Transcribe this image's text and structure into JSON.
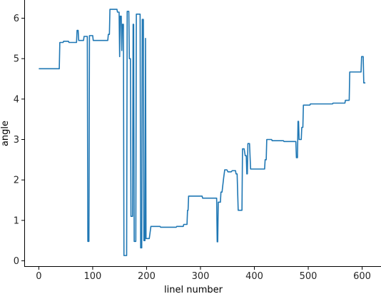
{
  "chart_data": {
    "type": "line",
    "title": "",
    "xlabel": "linel number",
    "ylabel": "angle",
    "xlim": [
      -27,
      635
    ],
    "ylim": [
      -0.15,
      6.45
    ],
    "xticks": [
      0,
      100,
      200,
      300,
      400,
      500,
      600
    ],
    "yticks": [
      0,
      1,
      2,
      3,
      4,
      5,
      6
    ],
    "grid": false,
    "line_color": "#1f77b4",
    "series": [
      {
        "points": [
          [
            0,
            4.75
          ],
          [
            38,
            4.75
          ],
          [
            39,
            5.4
          ],
          [
            45,
            5.4
          ],
          [
            46,
            5.43
          ],
          [
            55,
            5.43
          ],
          [
            56,
            5.4
          ],
          [
            70,
            5.4
          ],
          [
            71,
            5.7
          ],
          [
            73,
            5.7
          ],
          [
            74,
            5.45
          ],
          [
            83,
            5.45
          ],
          [
            84,
            5.55
          ],
          [
            90,
            5.55
          ],
          [
            91,
            0.48
          ],
          [
            93,
            0.48
          ],
          [
            94,
            5.57
          ],
          [
            100,
            5.57
          ],
          [
            101,
            5.45
          ],
          [
            128,
            5.45
          ],
          [
            129,
            5.6
          ],
          [
            131,
            5.6
          ],
          [
            132,
            6.22
          ],
          [
            145,
            6.22
          ],
          [
            146,
            6.15
          ],
          [
            149,
            6.15
          ],
          [
            150,
            5.05
          ],
          [
            151,
            6.05
          ],
          [
            153,
            6.05
          ],
          [
            154,
            5.2
          ],
          [
            155,
            5.85
          ],
          [
            157,
            5.85
          ],
          [
            158,
            0.13
          ],
          [
            163,
            0.13
          ],
          [
            164,
            6.17
          ],
          [
            167,
            6.17
          ],
          [
            168,
            5.0
          ],
          [
            170,
            5.0
          ],
          [
            171,
            1.1
          ],
          [
            174,
            1.1
          ],
          [
            175,
            5.85
          ],
          [
            176,
            5.85
          ],
          [
            177,
            0.48
          ],
          [
            180,
            0.48
          ],
          [
            181,
            6.1
          ],
          [
            188,
            6.1
          ],
          [
            189,
            0.32
          ],
          [
            191,
            0.32
          ],
          [
            192,
            5.97
          ],
          [
            194,
            5.97
          ],
          [
            195,
            0.5
          ],
          [
            197,
            0.5
          ],
          [
            198,
            5.5
          ],
          [
            199,
            0.55
          ],
          [
            205,
            0.55
          ],
          [
            208,
            0.85
          ],
          [
            225,
            0.85
          ],
          [
            226,
            0.83
          ],
          [
            255,
            0.83
          ],
          [
            256,
            0.85
          ],
          [
            268,
            0.85
          ],
          [
            269,
            0.9
          ],
          [
            275,
            0.9
          ],
          [
            276,
            1.25
          ],
          [
            277,
            1.25
          ],
          [
            278,
            1.6
          ],
          [
            303,
            1.6
          ],
          [
            304,
            1.55
          ],
          [
            330,
            1.55
          ],
          [
            331,
            0.47
          ],
          [
            332,
            0.47
          ],
          [
            333,
            1.45
          ],
          [
            337,
            1.45
          ],
          [
            338,
            1.7
          ],
          [
            340,
            1.7
          ],
          [
            343,
            2.05
          ],
          [
            345,
            2.25
          ],
          [
            349,
            2.25
          ],
          [
            351,
            2.2
          ],
          [
            357,
            2.2
          ],
          [
            359,
            2.23
          ],
          [
            365,
            2.23
          ],
          [
            366,
            2.15
          ],
          [
            368,
            2.15
          ],
          [
            370,
            1.25
          ],
          [
            377,
            1.25
          ],
          [
            378,
            2.77
          ],
          [
            381,
            2.77
          ],
          [
            383,
            2.6
          ],
          [
            385,
            2.6
          ],
          [
            386,
            2.15
          ],
          [
            387,
            2.15
          ],
          [
            388,
            2.9
          ],
          [
            391,
            2.9
          ],
          [
            393,
            2.27
          ],
          [
            419,
            2.27
          ],
          [
            420,
            2.5
          ],
          [
            422,
            2.5
          ],
          [
            423,
            3.0
          ],
          [
            432,
            3.0
          ],
          [
            433,
            2.97
          ],
          [
            454,
            2.97
          ],
          [
            455,
            2.95
          ],
          [
            477,
            2.95
          ],
          [
            478,
            2.55
          ],
          [
            480,
            2.55
          ],
          [
            481,
            3.45
          ],
          [
            482,
            3.45
          ],
          [
            483,
            3.0
          ],
          [
            487,
            3.0
          ],
          [
            488,
            3.3
          ],
          [
            490,
            3.3
          ],
          [
            491,
            3.85
          ],
          [
            503,
            3.85
          ],
          [
            504,
            3.88
          ],
          [
            545,
            3.88
          ],
          [
            546,
            3.9
          ],
          [
            568,
            3.9
          ],
          [
            569,
            3.97
          ],
          [
            576,
            3.97
          ],
          [
            577,
            4.67
          ],
          [
            598,
            4.67
          ],
          [
            599,
            5.05
          ],
          [
            602,
            5.05
          ],
          [
            603,
            4.4
          ],
          [
            606,
            4.4
          ]
        ]
      }
    ]
  }
}
